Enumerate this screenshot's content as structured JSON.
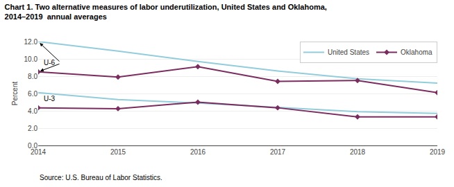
{
  "chart_data": {
    "type": "line",
    "title": "Chart 1. Two alternative measures of labor underutilization, United States and Oklahoma,",
    "subtitle": "2014–2019  annual averages",
    "source": "Source: U.S. Bureau of Labor Statistics.",
    "ylabel": "Percent",
    "x": [
      2014,
      2015,
      2016,
      2017,
      2018,
      2019
    ],
    "series": [
      {
        "name": "United States",
        "color": "#92CDDC",
        "values": [
          12.0,
          10.9,
          9.7,
          8.6,
          7.7,
          7.2
        ]
      },
      {
        "name": "United States",
        "color": "#92CDDC",
        "values": [
          6.1,
          5.3,
          4.9,
          4.4,
          3.9,
          3.7
        ]
      },
      {
        "name": "Oklahoma",
        "color": "#7B2C5E",
        "marker": "diamond",
        "values": [
          8.5,
          7.9,
          9.1,
          7.4,
          7.5,
          6.1
        ]
      },
      {
        "name": "Oklahoma",
        "color": "#7B2C5E",
        "marker": "diamond",
        "values": [
          4.35,
          4.25,
          5.0,
          4.35,
          3.3,
          3.3
        ]
      }
    ],
    "annotations": [
      "U-6",
      "U-3"
    ],
    "xlim": [
      2014,
      2019
    ],
    "xticks": [
      2014,
      2015,
      2016,
      2017,
      2018,
      2019
    ],
    "ylim": [
      0.0,
      12.0
    ],
    "yticks": [
      {
        "value": 0.0,
        "label": "0.0"
      },
      {
        "value": 2.0,
        "label": "2.0"
      },
      {
        "value": 4.0,
        "label": "4.0"
      },
      {
        "value": 6.0,
        "label": "6.0"
      },
      {
        "value": 8.0,
        "label": "8.0"
      },
      {
        "value": 10.0,
        "label": "10.0"
      },
      {
        "value": 12.0,
        "label": "12.0"
      }
    ],
    "grid": true,
    "legend": "upper right"
  }
}
